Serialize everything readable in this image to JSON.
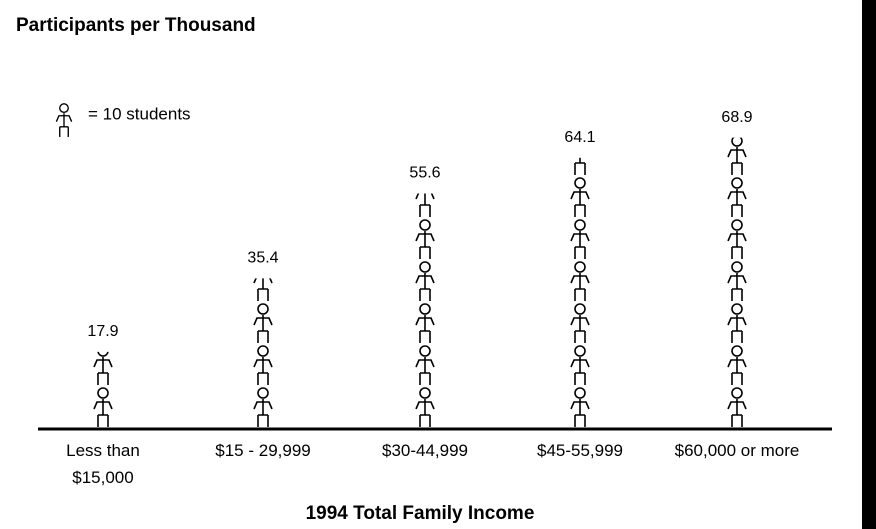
{
  "chart_data": {
    "type": "pictograph",
    "title": "Participants per Thousand",
    "legend_label": "= 10 students",
    "icon_value": 10,
    "categories": [
      "Less than $15,000",
      "$15 - 29,999",
      "$30-44,999",
      "$45-55,999",
      "$60,000 or more"
    ],
    "values": [
      17.9,
      35.4,
      55.6,
      64.1,
      68.9
    ],
    "x_label": "1994 Total Family Income",
    "color": "#000000"
  }
}
